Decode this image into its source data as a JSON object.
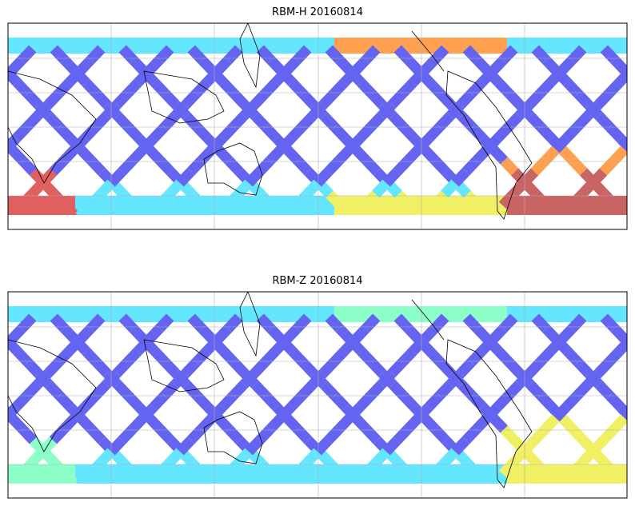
{
  "panels": [
    {
      "title": "RBM-H 20160814",
      "hot_regions": "high"
    },
    {
      "title": "RBM-Z 20160814",
      "hot_regions": "moderate"
    }
  ],
  "colormap": [
    "#6464f0",
    "#64a0ff",
    "#64e6ff",
    "#8cffc8",
    "#f0f064",
    "#ffa050",
    "#e06060",
    "#c86464"
  ],
  "grid_color": "#b0b0b0",
  "coastline_color": "#000000"
}
